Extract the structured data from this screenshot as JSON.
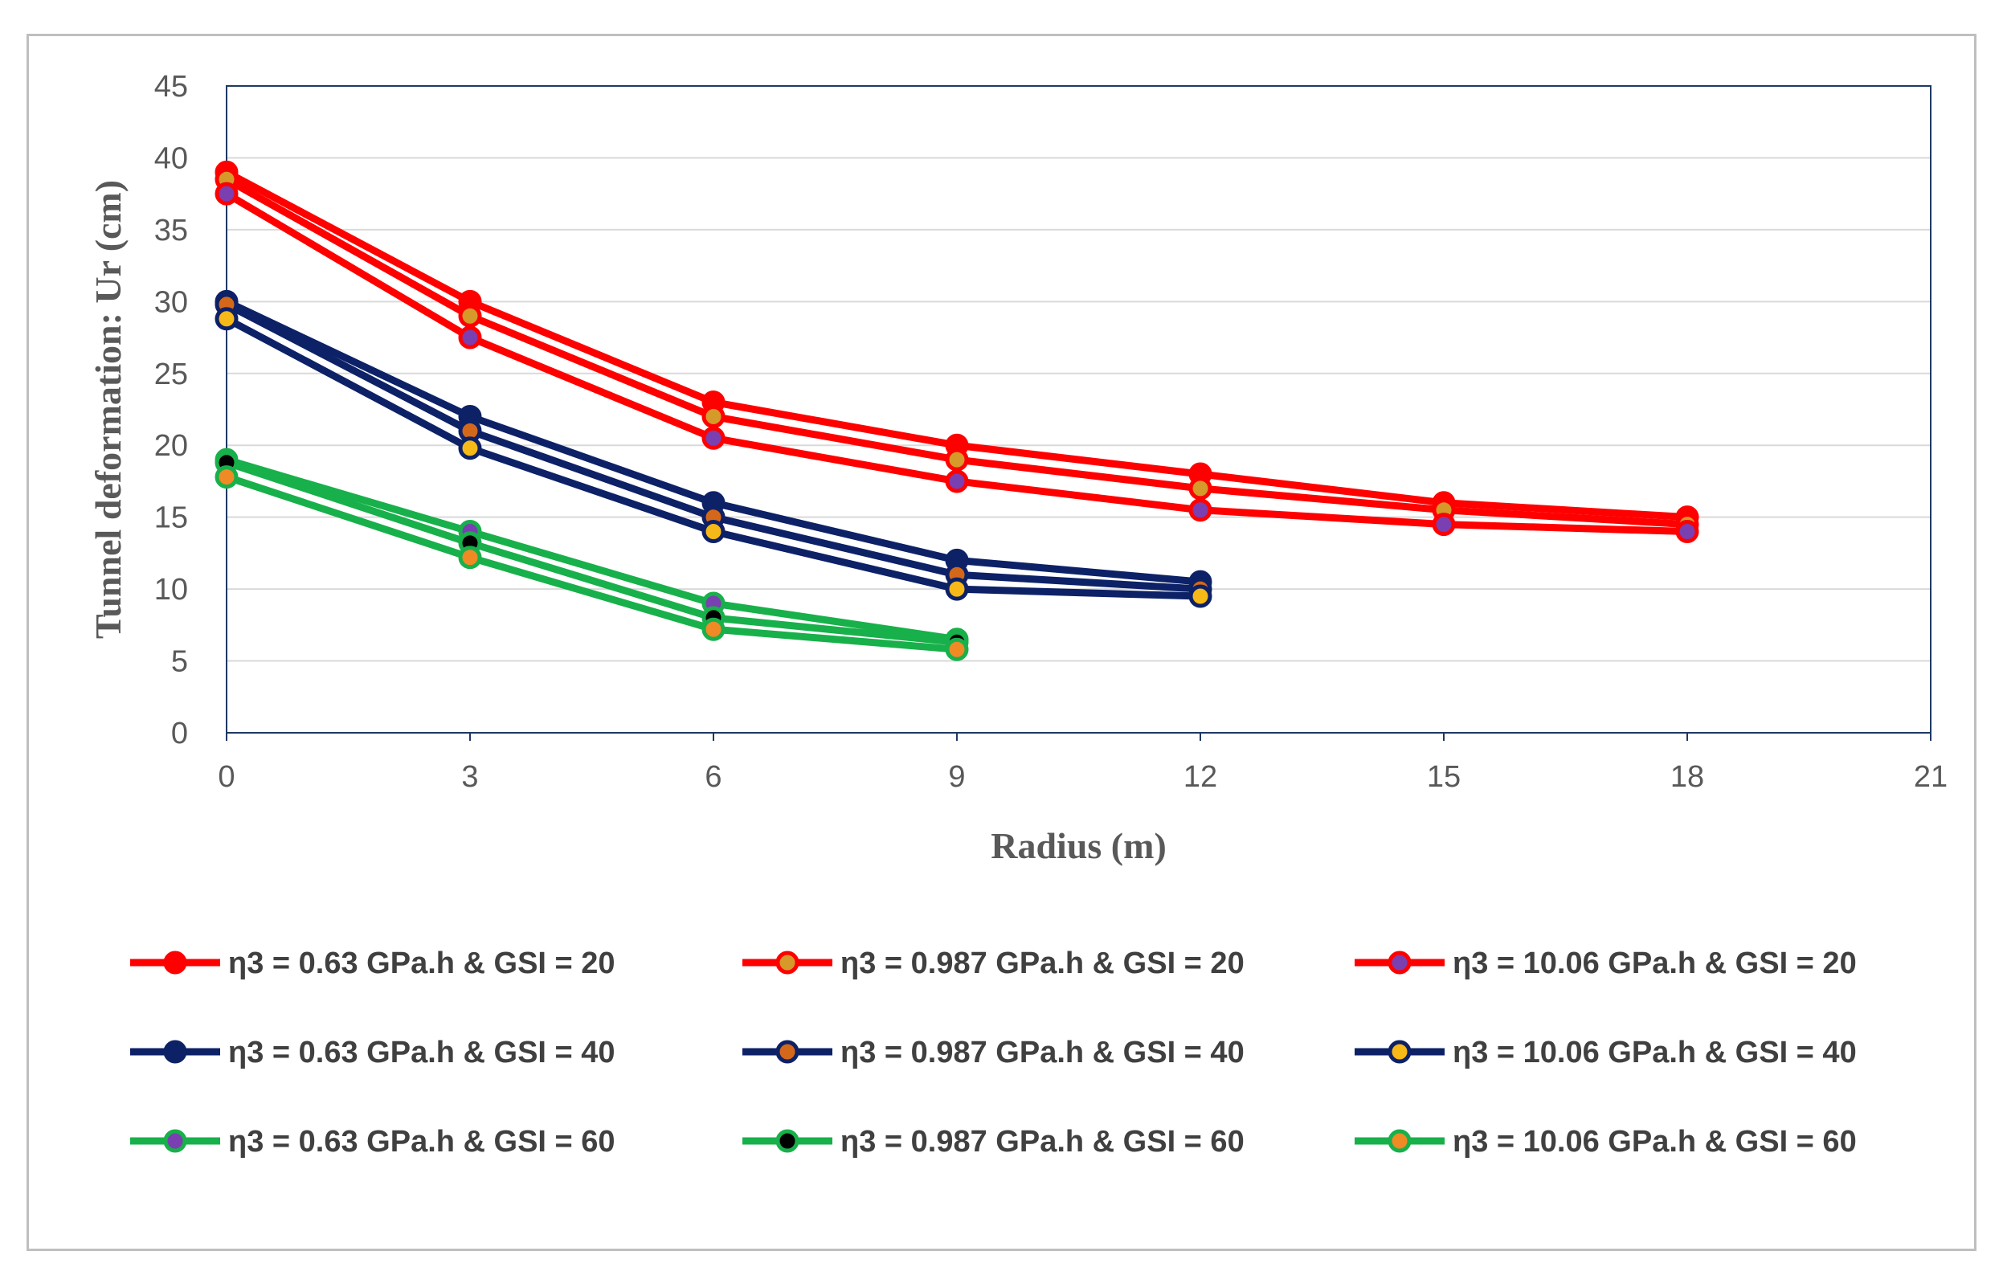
{
  "chart_data": {
    "type": "line",
    "xlabel": "Radius (m)",
    "ylabel": "Tunnel deformation: Ur (cm)",
    "xlim": [
      0,
      21
    ],
    "ylim": [
      0,
      45
    ],
    "xticks": [
      0,
      3,
      6,
      9,
      12,
      15,
      18,
      21
    ],
    "yticks": [
      0,
      5,
      10,
      15,
      20,
      25,
      30,
      35,
      40,
      45
    ],
    "grid": "horizontal",
    "legend_position": "bottom",
    "series": [
      {
        "name": "η3 = 0.63 GPa.h  &  GSI = 20",
        "line_color": "#ff0000",
        "marker_fill": "#ff0000",
        "x": [
          0,
          3,
          6,
          9,
          12,
          15,
          18
        ],
        "y": [
          39,
          30,
          23,
          20,
          18,
          16,
          15
        ]
      },
      {
        "name": "η3 = 0.987 GPa.h  &  GSI = 20",
        "line_color": "#ff0000",
        "marker_fill": "#d59a2a",
        "x": [
          0,
          3,
          6,
          9,
          12,
          15,
          18
        ],
        "y": [
          38.5,
          29,
          22,
          19,
          17,
          15.5,
          14.5
        ]
      },
      {
        "name": "η3 = 10.06 GPa.h  &  GSI = 20",
        "line_color": "#ff0000",
        "marker_fill": "#7a3fb0",
        "x": [
          0,
          3,
          6,
          9,
          12,
          15,
          18
        ],
        "y": [
          37.5,
          27.5,
          20.5,
          17.5,
          15.5,
          14.5,
          14
        ]
      },
      {
        "name": "η3 = 0.63 GPa.h  &  GSI = 40",
        "line_color": "#0d2167",
        "marker_fill": "#0d2167",
        "x": [
          0,
          3,
          6,
          9,
          12
        ],
        "y": [
          30,
          22,
          16,
          12,
          10.5
        ]
      },
      {
        "name": "η3 = 0.987 GPa.h  &  GSI = 40",
        "line_color": "#0d2167",
        "marker_fill": "#d4681a",
        "x": [
          0,
          3,
          6,
          9,
          12
        ],
        "y": [
          29.8,
          21,
          15,
          11,
          10
        ]
      },
      {
        "name": "η3 = 10.06 GPa.h  &  GSI = 40",
        "line_color": "#0d2167",
        "marker_fill": "#f7b918",
        "x": [
          0,
          3,
          6,
          9,
          12
        ],
        "y": [
          28.8,
          19.8,
          14,
          10,
          9.5
        ]
      },
      {
        "name": "η3 = 0.63 GPa.h  &  GSI = 60",
        "line_color": "#18b04a",
        "marker_fill": "#7a3fb0",
        "x": [
          0,
          3,
          6,
          9
        ],
        "y": [
          19,
          14,
          9,
          6.5
        ]
      },
      {
        "name": "η3 = 0.987 GPa.h  &  GSI = 60",
        "line_color": "#18b04a",
        "marker_fill": "#000000",
        "x": [
          0,
          3,
          6,
          9
        ],
        "y": [
          18.8,
          13.2,
          8,
          6.3
        ]
      },
      {
        "name": "η3 = 10.06 GPa.h  &  GSI = 60",
        "line_color": "#18b04a",
        "marker_fill": "#f08a24",
        "x": [
          0,
          3,
          6,
          9
        ],
        "y": [
          17.8,
          12.2,
          7.2,
          5.8
        ]
      }
    ]
  }
}
